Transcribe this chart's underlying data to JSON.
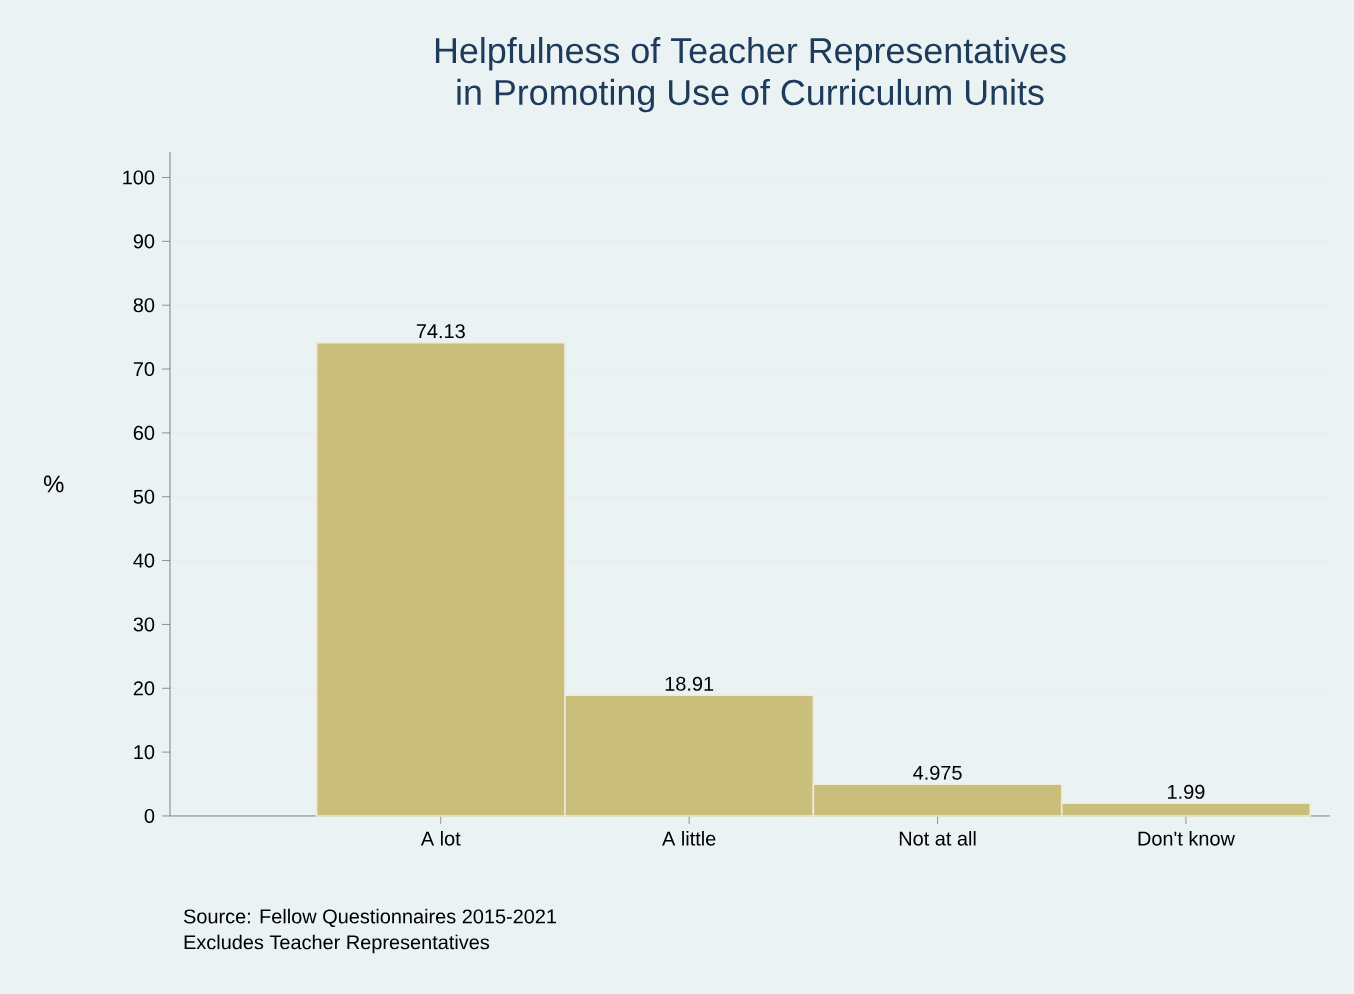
{
  "chart_data": {
    "type": "bar",
    "title": "Helpfulness of Teacher Representatives\nin Promoting Use of Curriculum Units",
    "ylabel": "%",
    "categories": [
      "A lot",
      "A little",
      "Not at all",
      "Don't know"
    ],
    "values": [
      74.13,
      18.91,
      4.975,
      1.99
    ],
    "color": "#c9be7c",
    "ylim": [
      0,
      104
    ],
    "yticks": [
      0,
      10,
      20,
      30,
      40,
      50,
      60,
      70,
      80,
      90,
      100
    ],
    "grid": "y",
    "data_labels": true,
    "annotations": [
      "Source: Fellow Questionnaires 2015-2021",
      "Excludes Teacher Representatives"
    ]
  }
}
